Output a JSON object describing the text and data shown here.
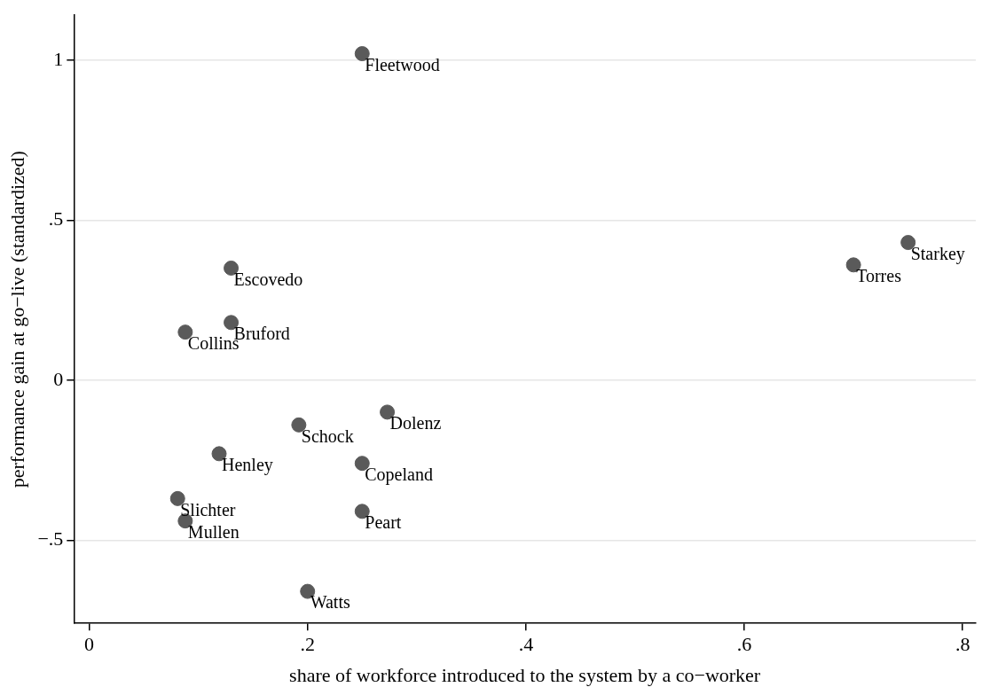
{
  "chart_data": {
    "type": "scatter",
    "xlabel": "share of workforce introduced to the system by a co−worker",
    "ylabel": "performance gain at go−live (standardized)",
    "x": [
      0.25,
      0.75,
      0.7,
      0.13,
      0.13,
      0.088,
      0.273,
      0.192,
      0.119,
      0.25,
      0.081,
      0.088,
      0.25,
      0.2
    ],
    "values": [
      1.02,
      0.43,
      0.36,
      0.35,
      0.18,
      0.15,
      -0.1,
      -0.14,
      -0.23,
      -0.26,
      -0.37,
      -0.44,
      -0.41,
      -0.66
    ],
    "color": "#5a5a5a",
    "marker": "circle",
    "grid": "y",
    "legend": false,
    "xlim": [
      -0.014,
      0.812
    ],
    "ylim": [
      -0.76,
      1.14
    ],
    "xticks": [
      0,
      {
        "value": 0.2,
        "label": ".2"
      },
      {
        "value": 0.4,
        "label": ".4"
      },
      {
        "value": 0.6,
        "label": ".6"
      },
      {
        "value": 0.8,
        "label": ".8"
      }
    ],
    "yticks": [
      {
        "value": -0.5,
        "label": "−.5"
      },
      0,
      {
        "value": 0.5,
        "label": ".5"
      },
      1
    ],
    "annotations": [
      {
        "text": "Fleetwood",
        "x": 0.25,
        "y": 1.02
      },
      {
        "text": "Starkey",
        "x": 0.75,
        "y": 0.43
      },
      {
        "text": "Torres",
        "x": 0.7,
        "y": 0.36
      },
      {
        "text": "Escovedo",
        "x": 0.13,
        "y": 0.35
      },
      {
        "text": "Bruford",
        "x": 0.13,
        "y": 0.18
      },
      {
        "text": "Collins",
        "x": 0.088,
        "y": 0.15
      },
      {
        "text": "Dolenz",
        "x": 0.273,
        "y": -0.1
      },
      {
        "text": "Schock",
        "x": 0.192,
        "y": -0.14
      },
      {
        "text": "Henley",
        "x": 0.119,
        "y": -0.23
      },
      {
        "text": "Copeland",
        "x": 0.25,
        "y": -0.26
      },
      {
        "text": "Slichter",
        "x": 0.081,
        "y": -0.37
      },
      {
        "text": "Mullen",
        "x": 0.088,
        "y": -0.44
      },
      {
        "text": "Peart",
        "x": 0.25,
        "y": -0.41
      },
      {
        "text": "Watts",
        "x": 0.2,
        "y": -0.66
      }
    ]
  }
}
